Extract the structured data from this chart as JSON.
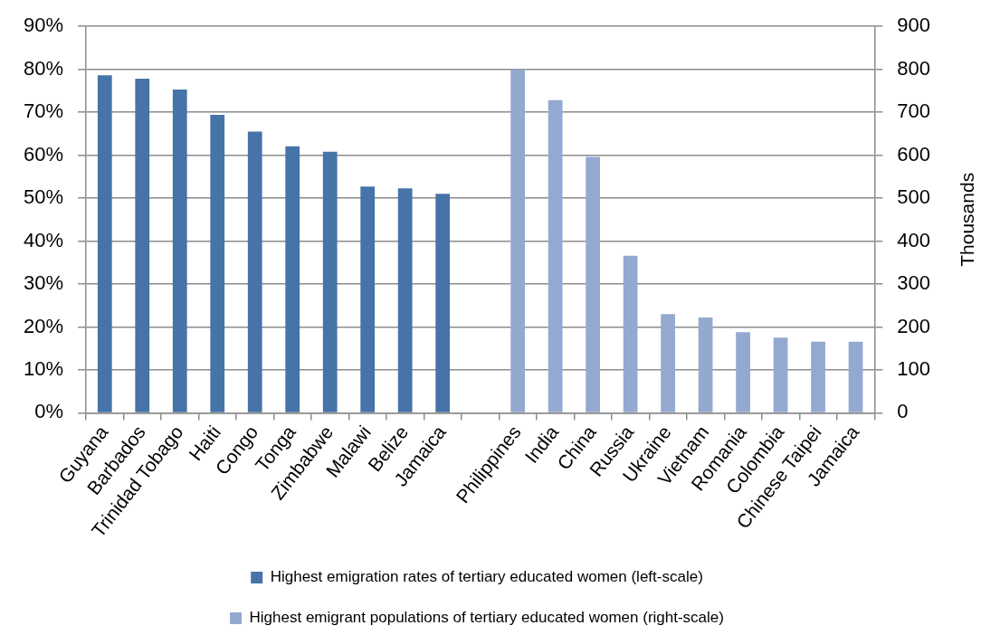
{
  "chart_data": {
    "type": "bar",
    "categories": [
      "Guyana",
      "Barbados",
      "Trinidad Tobago",
      "Haiti",
      "Congo",
      "Tonga",
      "Zimbabwe",
      "Malawi",
      "Belize",
      "Jamaica",
      null,
      "Philippines",
      "India",
      "China",
      "Russia",
      "Ukraine",
      "Vietnam",
      "Romania",
      "Colombia",
      "Chinese Taipei",
      "Jamaica"
    ],
    "series": [
      {
        "name": "Highest emigration rates of tertiary educated women (left-scale)",
        "color": "#4673a8",
        "values": [
          78.6,
          77.8,
          75.3,
          69.4,
          65.5,
          62.1,
          60.8,
          52.7,
          52.3,
          51.0,
          null,
          null,
          null,
          null,
          null,
          null,
          null,
          null,
          null,
          null,
          null
        ]
      },
      {
        "name": "Highest emigrant populations of tertiary educated women (right-scale)",
        "color": "#94a9d0",
        "axis": "y2",
        "values": [
          null,
          null,
          null,
          null,
          null,
          null,
          null,
          null,
          null,
          null,
          null,
          800,
          728,
          596,
          366,
          230,
          222,
          188,
          175,
          166,
          166
        ]
      }
    ],
    "ylim": [
      0,
      90
    ],
    "yticks": [
      {
        "value": 0,
        "label": "0%"
      },
      {
        "value": 10,
        "label": "10%"
      },
      {
        "value": 20,
        "label": "20%"
      },
      {
        "value": 30,
        "label": "30%"
      },
      {
        "value": 40,
        "label": "40%"
      },
      {
        "value": 50,
        "label": "50%"
      },
      {
        "value": 60,
        "label": "60%"
      },
      {
        "value": 70,
        "label": "70%"
      },
      {
        "value": 80,
        "label": "80%"
      },
      {
        "value": 90,
        "label": "90%"
      }
    ],
    "y2lim": [
      0,
      900
    ],
    "y2ticks": [
      0,
      100,
      200,
      300,
      400,
      500,
      600,
      700,
      800,
      900
    ],
    "y2label": "Thousands",
    "grid": "y",
    "legend": "bottom"
  }
}
